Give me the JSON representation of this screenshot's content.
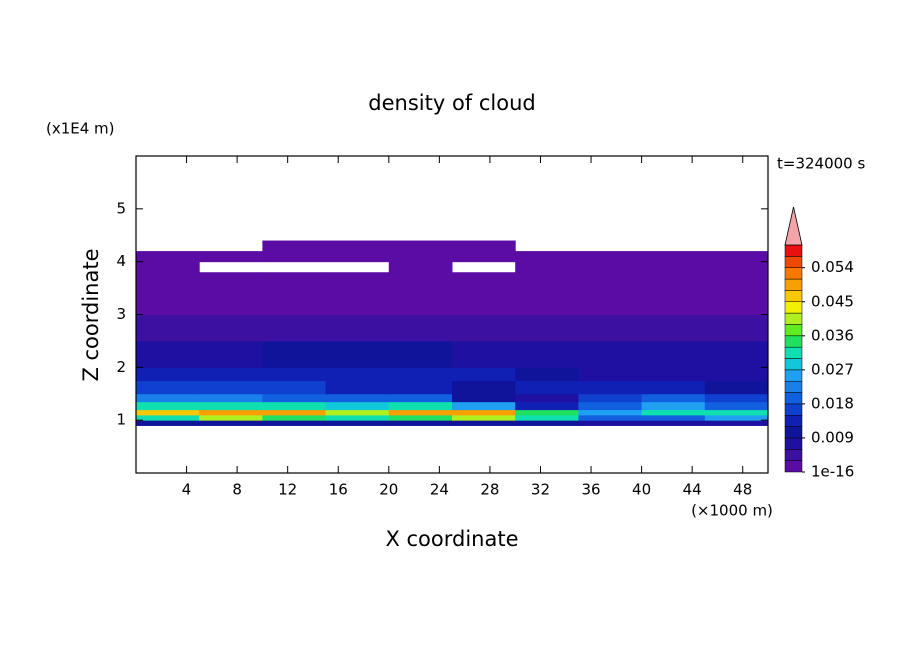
{
  "chart_data": {
    "type": "contour",
    "title": "density of cloud",
    "x_label": "X coordinate",
    "x_unit": "(×1000 m)",
    "y_label": "Z coordinate",
    "y_unit": "(x1E4 m)",
    "annotation": "t=324000 s",
    "xlim": [
      0,
      50
    ],
    "xticks": [
      4,
      8,
      12,
      16,
      20,
      24,
      28,
      32,
      36,
      40,
      44,
      48
    ],
    "ylim": [
      0,
      6
    ],
    "yticks": [
      1,
      2,
      3,
      4,
      5
    ],
    "x_edges": [
      0,
      5,
      10,
      15,
      20,
      25,
      30,
      35,
      40,
      45,
      50
    ],
    "z_edges": [
      0.9,
      1.0,
      1.1,
      1.2,
      1.35,
      1.5,
      1.75,
      2.0,
      2.5,
      3.0,
      3.5,
      3.8,
      4.0,
      4.2,
      4.4
    ],
    "values": [
      [
        0.01,
        0.01,
        0.01,
        0.01,
        0.01,
        0.01,
        0.01,
        0.008,
        0.008,
        0.008
      ],
      [
        0.03,
        0.04,
        0.035,
        0.03,
        0.035,
        0.04,
        0.03,
        0.02,
        0.02,
        0.025
      ],
      [
        0.045,
        0.05,
        0.05,
        0.04,
        0.05,
        0.048,
        0.035,
        0.025,
        0.03,
        0.03
      ],
      [
        0.03,
        0.03,
        0.03,
        0.028,
        0.03,
        0.025,
        0.012,
        0.02,
        0.025,
        0.02
      ],
      [
        0.022,
        0.022,
        0.02,
        0.02,
        0.02,
        0.01,
        0.008,
        0.016,
        0.02,
        0.016
      ],
      [
        0.016,
        0.016,
        0.015,
        0.014,
        0.013,
        0.01,
        0.012,
        0.012,
        0.012,
        0.01
      ],
      [
        0.012,
        0.012,
        0.012,
        0.013,
        0.013,
        0.012,
        0.01,
        0.008,
        0.008,
        0.008
      ],
      [
        0.007,
        0.008,
        0.009,
        0.01,
        0.009,
        0.008,
        0.007,
        0.006,
        0.006,
        0.006
      ],
      [
        0.005,
        0.005,
        0.005,
        0.005,
        0.005,
        0.005,
        0.005,
        0.004,
        0.004,
        0.004
      ],
      [
        0.002,
        0.002,
        0.002,
        0.002,
        0.002,
        0.002,
        0.002,
        0.002,
        0.002,
        0.002
      ],
      [
        0.001,
        0.001,
        0.001,
        0.001,
        0.001,
        0.001,
        0.001,
        0.001,
        0.001,
        0.001
      ],
      [
        0.001,
        null,
        null,
        null,
        0.001,
        null,
        0.001,
        0.001,
        0.001,
        0.001
      ],
      [
        0.001,
        0.001,
        0.001,
        0.001,
        0.001,
        0.001,
        0.001,
        0.001,
        0.001,
        0.001
      ],
      [
        null,
        null,
        0.001,
        0.001,
        0.001,
        0.001,
        null,
        null,
        null,
        null
      ]
    ],
    "levels": [
      1e-16,
      0.003,
      0.006,
      0.009,
      0.012,
      0.015,
      0.018,
      0.021,
      0.024,
      0.027,
      0.03,
      0.033,
      0.036,
      0.039,
      0.042,
      0.045,
      0.048,
      0.051,
      0.054,
      0.057,
      0.06
    ],
    "colors": [
      "#5a0ca5",
      "#3c10a0",
      "#1e10a0",
      "#10149b",
      "#1020b4",
      "#1040d0",
      "#1060e0",
      "#1880e8",
      "#20a0f0",
      "#10c8d8",
      "#10e0b0",
      "#20e060",
      "#60ec20",
      "#b0f020",
      "#f0f000",
      "#f8c800",
      "#f8a000",
      "#f87800",
      "#f04800",
      "#e81010"
    ],
    "extend_color": "#f4a3a8",
    "colorbar_ticks": [
      1e-16,
      0.009,
      0.018,
      0.027,
      0.036,
      0.045,
      0.054
    ]
  }
}
